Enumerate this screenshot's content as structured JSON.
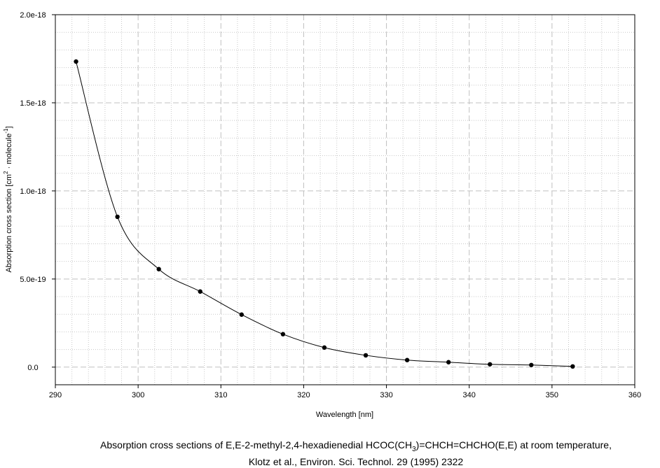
{
  "chart_data": {
    "type": "line",
    "x_label": "Wavelength [nm]",
    "y_label": [
      "Absorption cross section [cm",
      "2",
      " · molecule",
      "-1",
      "]"
    ],
    "caption": [
      [
        "Absorption cross sections of E,E-2-methyl-2,4-hexadienedial HCOC(CH",
        "3",
        ")=CHCH=CHCHO(E,E) at room temperature,"
      ],
      [
        "Klotz et al., Environ. Sci. Technol. 29 (1995) 2322"
      ]
    ],
    "x": [
      292.5,
      297.5,
      302.5,
      307.5,
      312.5,
      317.5,
      322.5,
      327.5,
      332.5,
      337.5,
      342.5,
      347.5,
      352.5
    ],
    "series": [
      {
        "color": "#000000",
        "values": [
          1.734e-18,
          8.53e-19,
          5.56e-19,
          4.29e-19,
          2.98e-19,
          1.87e-19,
          1.11e-19,
          6.7e-20,
          4e-20,
          2.8e-20,
          1.6e-20,
          1.2e-20,
          4e-21
        ]
      }
    ],
    "xlim": [
      290,
      360
    ],
    "xticks": [
      290,
      300,
      310,
      320,
      330,
      340,
      350,
      360
    ],
    "ylim": [
      -1e-19,
      2e-18
    ],
    "yticks": [
      {
        "value": 0,
        "label": "0.0"
      },
      {
        "value": 5e-19,
        "label": "5.0e-19"
      },
      {
        "value": 1e-18,
        "label": "1.0e-18"
      },
      {
        "value": 1.5e-18,
        "label": "1.5e-18"
      },
      {
        "value": 2e-18,
        "label": "2.0e-18"
      }
    ],
    "grid": true,
    "smooth": true
  }
}
